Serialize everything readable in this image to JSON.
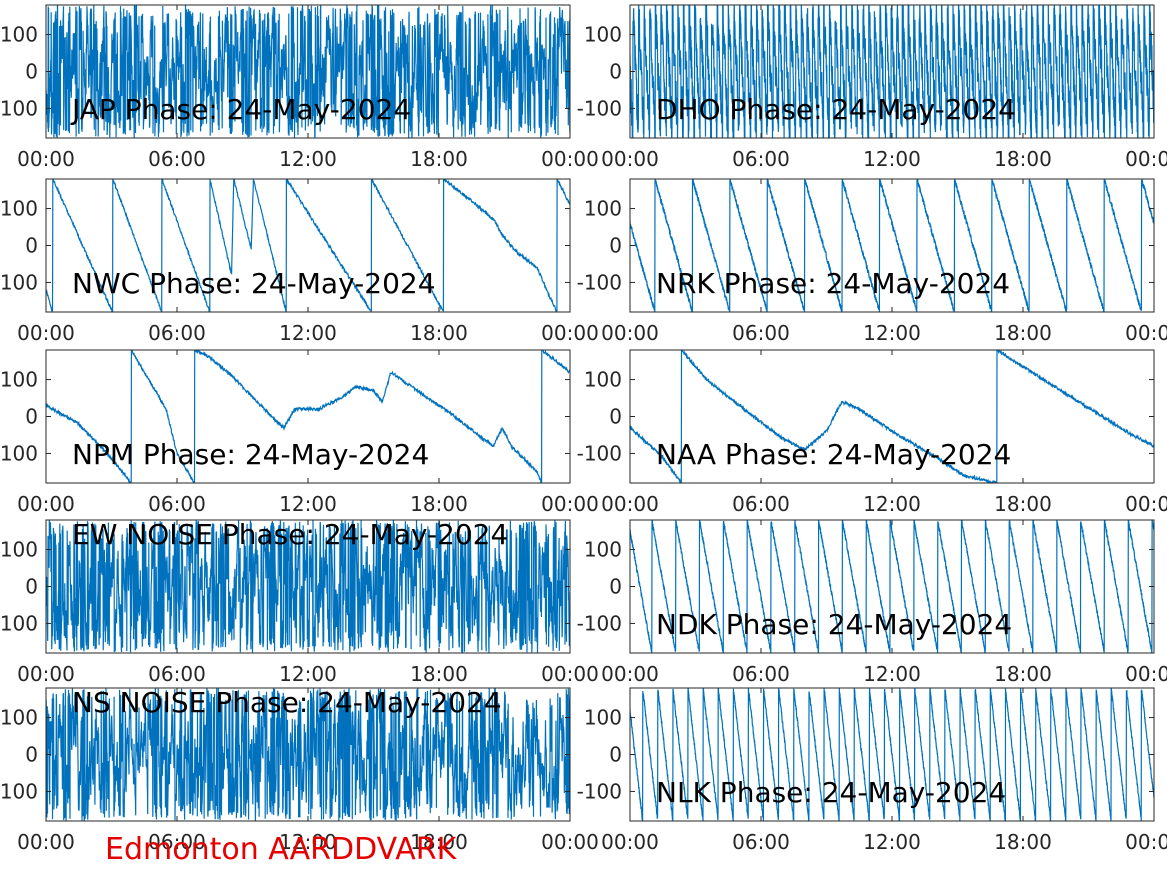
{
  "figure": {
    "footer": "Edmonton AARDDVARK",
    "footer_color": "#e60000",
    "line_color": "#0072bd",
    "axis_color": "#262626",
    "background": "#ffffff"
  },
  "chart_data": [
    {
      "type": "line",
      "title": "JAP Phase: 24-May-2024",
      "title_position": "bottom-left",
      "xticks": [
        "00:00",
        "06:00",
        "12:00",
        "18:00",
        "00:00"
      ],
      "yticks": [
        "100",
        "0",
        "100"
      ],
      "xlim_hours": [
        0,
        24
      ],
      "ylim": [
        -180,
        180
      ],
      "trace": {
        "pattern": "noise",
        "rate": 0.0,
        "seed": 3
      }
    },
    {
      "type": "line",
      "title": "DHO Phase: 24-May-2024",
      "title_position": "bottom-left",
      "xticks": [
        "00:00",
        "06:00",
        "12:00",
        "18:00",
        "00:00"
      ],
      "yticks": [
        "100",
        "0",
        "-100"
      ],
      "xlim_hours": [
        0,
        24
      ],
      "ylim": [
        -180,
        180
      ],
      "trace": {
        "pattern": "fast-wrap",
        "rate": -1400,
        "seed": 5
      }
    },
    {
      "type": "line",
      "title": "NWC Phase: 24-May-2024",
      "title_position": "bottom-left",
      "xticks": [
        "00:00",
        "06:00",
        "12:00",
        "18:00",
        "00:00"
      ],
      "yticks": [
        "100",
        "0",
        "100"
      ],
      "xlim_hours": [
        0,
        24
      ],
      "ylim": [
        -180,
        180
      ],
      "trace": {
        "pattern": "anchors",
        "points": [
          [
            0,
            -120
          ],
          [
            0.3,
            -180
          ],
          [
            0.31,
            180
          ],
          [
            3.05,
            -180
          ],
          [
            3.06,
            180
          ],
          [
            5.3,
            -180
          ],
          [
            5.31,
            180
          ],
          [
            7.5,
            -180
          ],
          [
            7.51,
            180
          ],
          [
            8.5,
            -80
          ],
          [
            8.6,
            180
          ],
          [
            9.4,
            -10
          ],
          [
            9.5,
            180
          ],
          [
            11,
            -180
          ],
          [
            11.01,
            180
          ],
          [
            14.9,
            -180
          ],
          [
            14.91,
            180
          ],
          [
            18.2,
            -180
          ],
          [
            18.21,
            180
          ],
          [
            19.5,
            120
          ],
          [
            20.5,
            70
          ],
          [
            21,
            20
          ],
          [
            21.6,
            -20
          ],
          [
            22.5,
            -60
          ],
          [
            23,
            -130
          ],
          [
            23.4,
            -180
          ],
          [
            23.41,
            180
          ],
          [
            24,
            110
          ]
        ]
      }
    },
    {
      "type": "line",
      "title": "NRK Phase: 24-May-2024",
      "title_position": "bottom-left",
      "xticks": [
        "00:00",
        "06:00",
        "12:00",
        "18:00",
        "00:00"
      ],
      "yticks": [
        "100",
        "0",
        "-100"
      ],
      "xlim_hours": [
        0,
        24
      ],
      "ylim": [
        -180,
        180
      ],
      "trace": {
        "pattern": "sawtooth",
        "rate": -210,
        "start": 60,
        "seed": 11
      }
    },
    {
      "type": "line",
      "title": "NPM Phase: 24-May-2024",
      "title_position": "bottom-left",
      "xticks": [
        "00:00",
        "06:00",
        "12:00",
        "18:00",
        "00:00"
      ],
      "yticks": [
        "100",
        "0",
        "100"
      ],
      "xlim_hours": [
        0,
        24
      ],
      "ylim": [
        -180,
        180
      ],
      "trace": {
        "pattern": "anchors",
        "points": [
          [
            0,
            30
          ],
          [
            1.5,
            -20
          ],
          [
            2.8,
            -100
          ],
          [
            3.9,
            -180
          ],
          [
            3.91,
            180
          ],
          [
            4.5,
            120
          ],
          [
            5.5,
            20
          ],
          [
            6,
            -100
          ],
          [
            6.8,
            -180
          ],
          [
            6.81,
            180
          ],
          [
            7.5,
            160
          ],
          [
            8.5,
            110
          ],
          [
            9.5,
            50
          ],
          [
            10.5,
            -10
          ],
          [
            10.9,
            -30
          ],
          [
            11.4,
            20
          ],
          [
            12.5,
            20
          ],
          [
            13.5,
            50
          ],
          [
            14.2,
            80
          ],
          [
            15,
            70
          ],
          [
            15.4,
            40
          ],
          [
            15.8,
            120
          ],
          [
            17,
            70
          ],
          [
            18.5,
            10
          ],
          [
            20,
            -60
          ],
          [
            20.5,
            -80
          ],
          [
            20.9,
            -30
          ],
          [
            21.3,
            -80
          ],
          [
            22.5,
            -150
          ],
          [
            22.7,
            -180
          ],
          [
            22.71,
            180
          ],
          [
            24,
            120
          ]
        ]
      }
    },
    {
      "type": "line",
      "title": "NAA Phase: 24-May-2024",
      "title_position": "bottom-left",
      "xticks": [
        "00:00",
        "06:00",
        "12:00",
        "18:00",
        "00:00"
      ],
      "yticks": [
        "100",
        "0",
        "-100"
      ],
      "xlim_hours": [
        0,
        24
      ],
      "ylim": [
        -180,
        180
      ],
      "trace": {
        "pattern": "anchors",
        "points": [
          [
            0,
            -30
          ],
          [
            1.5,
            -110
          ],
          [
            2.35,
            -180
          ],
          [
            2.36,
            180
          ],
          [
            3.5,
            100
          ],
          [
            5,
            30
          ],
          [
            7,
            -60
          ],
          [
            8,
            -90
          ],
          [
            8.6,
            -60
          ],
          [
            9,
            -40
          ],
          [
            9.7,
            40
          ],
          [
            10.5,
            20
          ],
          [
            12,
            -40
          ],
          [
            14,
            -110
          ],
          [
            15.3,
            -160
          ],
          [
            16.8,
            -180
          ],
          [
            16.81,
            180
          ],
          [
            20,
            60
          ],
          [
            23,
            -50
          ],
          [
            24,
            -80
          ]
        ]
      }
    },
    {
      "type": "line",
      "title": "EW NOISE Phase: 24-May-2024",
      "title_position": "top-left",
      "xticks": [
        "00:00",
        "06:00",
        "12:00",
        "18:00",
        "00:00"
      ],
      "yticks": [
        "100",
        "0",
        "100"
      ],
      "xlim_hours": [
        0,
        24
      ],
      "ylim": [
        -180,
        180
      ],
      "trace": {
        "pattern": "noise",
        "rate": 0.0,
        "seed": 17
      }
    },
    {
      "type": "line",
      "title": "NDK Phase: 24-May-2024",
      "title_position": "bottom-left",
      "xticks": [
        "00:00",
        "06:00",
        "12:00",
        "18:00",
        "00:00"
      ],
      "yticks": [
        "100",
        "0",
        "-100"
      ],
      "xlim_hours": [
        0,
        24
      ],
      "ylim": [
        -180,
        180
      ],
      "trace": {
        "pattern": "sawtooth",
        "rate": -330,
        "start": 150,
        "seed": 23
      }
    },
    {
      "type": "line",
      "title": "NS NOISE Phase: 24-May-2024",
      "title_position": "top-left",
      "xticks": [
        "00:00",
        "06:00",
        "12:00",
        "18:00",
        "00:00"
      ],
      "yticks": [
        "100",
        "0",
        "100"
      ],
      "xlim_hours": [
        0,
        24
      ],
      "ylim": [
        -180,
        180
      ],
      "trace": {
        "pattern": "noise",
        "rate": 0.0,
        "seed": 29
      }
    },
    {
      "type": "line",
      "title": "NLK Phase: 24-May-2024",
      "title_position": "bottom-left",
      "xticks": [
        "00:00",
        "06:00",
        "12:00",
        "18:00",
        "00:00"
      ],
      "yticks": [
        "100",
        "0",
        "-100"
      ],
      "xlim_hours": [
        0,
        24
      ],
      "ylim": [
        -180,
        180
      ],
      "trace": {
        "pattern": "sawtooth",
        "rate": -520,
        "start": 120,
        "seed": 31
      }
    }
  ]
}
